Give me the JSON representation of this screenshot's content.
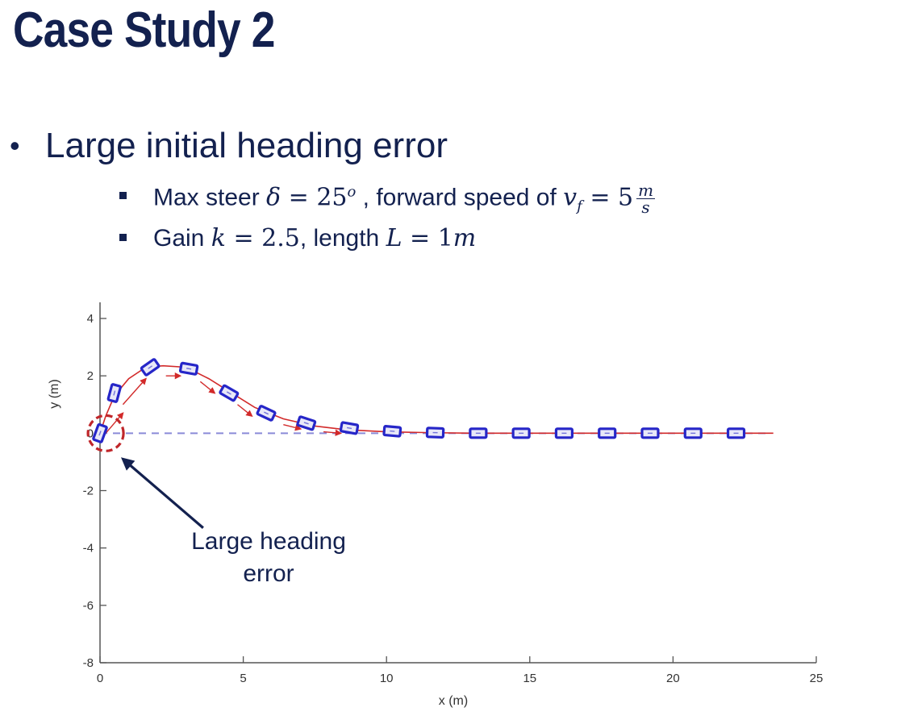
{
  "slide": {
    "title": "Case Study 2",
    "bullet": "Large initial heading error",
    "sub1": {
      "text_a": "Max steer ",
      "delta": "δ",
      "eq_a": " = 25",
      "sup": "o",
      "text_b": " , forward speed of ",
      "v": "v",
      "v_sub": "f",
      "eq_b": " = 5",
      "frac_num": "m",
      "frac_den": "s"
    },
    "sub2": {
      "text_a": "Gain ",
      "k": "k",
      "eq_a": " = 2.5",
      "text_b": ", length ",
      "L": "L",
      "eq_b": " = 1",
      "unit": "m"
    }
  },
  "chart_data": {
    "type": "scatter",
    "xlabel": "x (m)",
    "ylabel": "y (m)",
    "xlim": [
      0,
      25
    ],
    "ylim": [
      -8,
      4
    ],
    "xticks": [
      0,
      5,
      10,
      15,
      20,
      25
    ],
    "yticks": [
      4,
      2,
      0,
      -2,
      -4,
      -6,
      -8
    ],
    "reference_line_y": 0,
    "path": {
      "x": [
        0.0,
        0.2,
        0.5,
        1.0,
        1.6,
        2.2,
        3.0,
        3.8,
        4.6,
        5.4,
        6.4,
        7.5,
        8.6,
        10.0,
        11.5,
        13.0,
        14.5,
        16.0,
        17.5,
        19.0,
        20.5,
        22.0,
        23.5
      ],
      "y": [
        0.0,
        0.6,
        1.3,
        1.9,
        2.3,
        2.35,
        2.3,
        1.9,
        1.4,
        0.9,
        0.5,
        0.25,
        0.12,
        0.05,
        0.02,
        0.0,
        0.0,
        0.0,
        0.0,
        0.0,
        0.0,
        0.0,
        0.0
      ]
    },
    "arrows": [
      {
        "x": [
          0.2,
          0.8
        ],
        "y": [
          0.0,
          0.7
        ]
      },
      {
        "x": [
          0.8,
          1.6
        ],
        "y": [
          1.0,
          1.9
        ]
      },
      {
        "x": [
          2.3,
          2.8
        ],
        "y": [
          2.0,
          2.0
        ]
      },
      {
        "x": [
          3.5,
          4.0
        ],
        "y": [
          1.8,
          1.4
        ]
      },
      {
        "x": [
          4.8,
          5.3
        ],
        "y": [
          1.0,
          0.6
        ]
      },
      {
        "x": [
          6.4,
          7.0
        ],
        "y": [
          0.3,
          0.15
        ]
      },
      {
        "x": [
          7.8,
          8.4
        ],
        "y": [
          0.05,
          0.0
        ]
      }
    ],
    "vehicles": [
      {
        "x": 0.0,
        "y": 0.0,
        "heading_deg": 70
      },
      {
        "x": 0.5,
        "y": 1.4,
        "heading_deg": 75
      },
      {
        "x": 1.75,
        "y": 2.3,
        "heading_deg": 35
      },
      {
        "x": 3.1,
        "y": 2.25,
        "heading_deg": -10
      },
      {
        "x": 4.5,
        "y": 1.4,
        "heading_deg": -30
      },
      {
        "x": 5.8,
        "y": 0.7,
        "heading_deg": -25
      },
      {
        "x": 7.2,
        "y": 0.35,
        "heading_deg": -18
      },
      {
        "x": 8.7,
        "y": 0.18,
        "heading_deg": -10
      },
      {
        "x": 10.2,
        "y": 0.07,
        "heading_deg": -5
      },
      {
        "x": 11.7,
        "y": 0.02,
        "heading_deg": -2
      },
      {
        "x": 13.2,
        "y": 0.0,
        "heading_deg": 0
      },
      {
        "x": 14.7,
        "y": 0.0,
        "heading_deg": 0
      },
      {
        "x": 16.2,
        "y": 0.0,
        "heading_deg": 0
      },
      {
        "x": 17.7,
        "y": 0.0,
        "heading_deg": 0
      },
      {
        "x": 19.2,
        "y": 0.0,
        "heading_deg": 0
      },
      {
        "x": 20.7,
        "y": 0.0,
        "heading_deg": 0
      },
      {
        "x": 22.2,
        "y": 0.0,
        "heading_deg": 0
      }
    ],
    "annotation": {
      "lines": [
        "Large heading",
        "error"
      ],
      "circle_at": {
        "x": 0.2,
        "y": 0.0
      },
      "arrow_from": {
        "x": 3.6,
        "y": -3.3
      },
      "arrow_to": {
        "x": 0.8,
        "y": -0.9
      }
    },
    "colors": {
      "vehicle": "#2626c8",
      "path": "#d22a2a",
      "reference": "#8a8ad8",
      "circle": "#c0262a",
      "annotation_arrow": "#13214f",
      "axis": "#555555",
      "text": "#13214f"
    }
  }
}
